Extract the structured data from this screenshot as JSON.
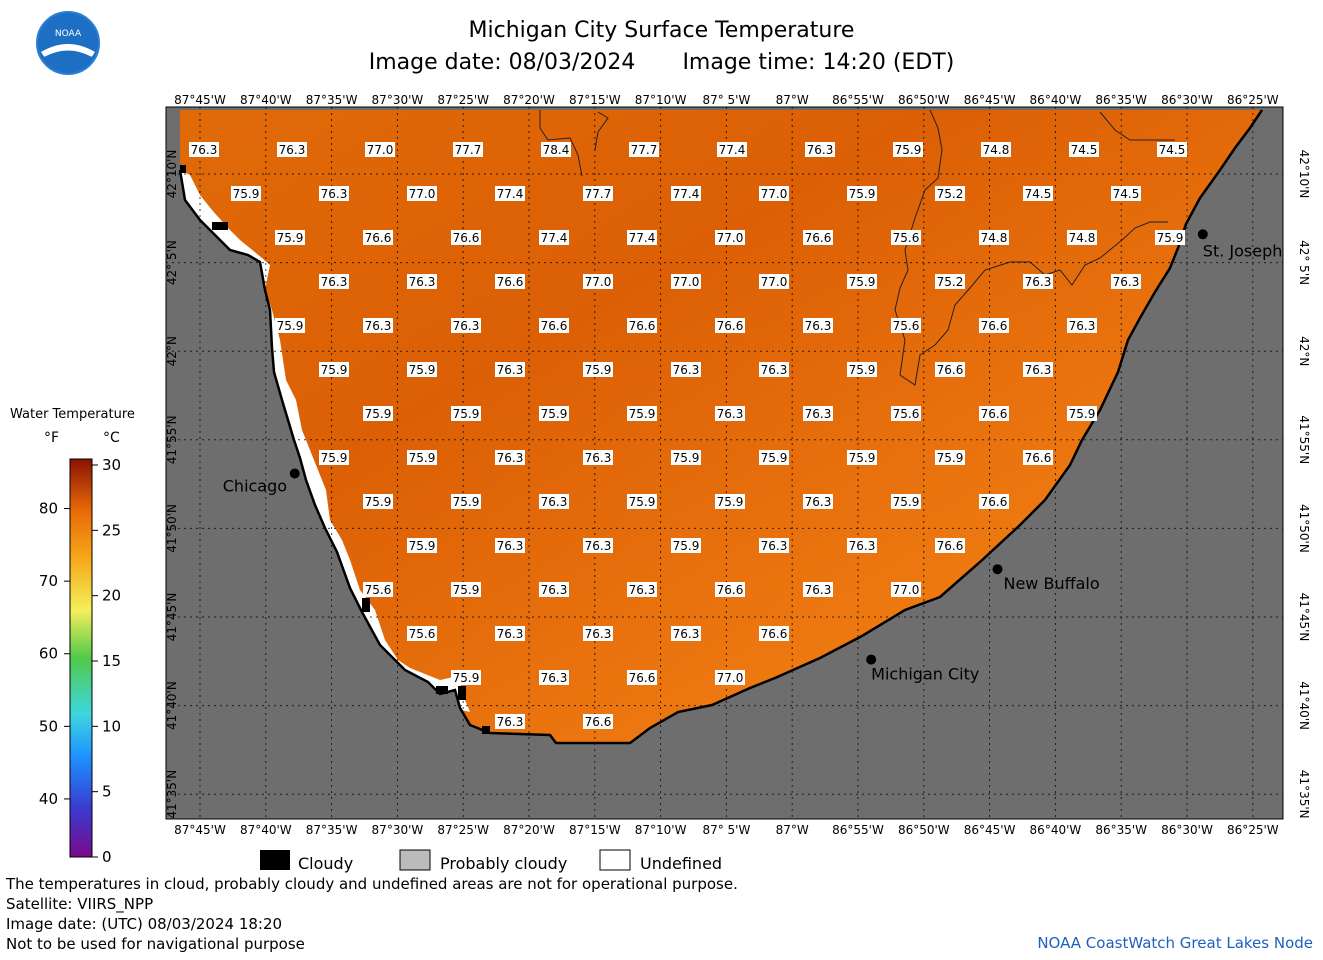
{
  "title": "Michigan City Surface Temperature",
  "image_date": "Image date: 08/03/2024",
  "image_time": "Image time: 14:20 (EDT)",
  "logo_text": "NOAA",
  "lon_labels": [
    "87°45'W",
    "87°40'W",
    "87°35'W",
    "87°30'W",
    "87°25'W",
    "87°20'W",
    "87°15'W",
    "87°10'W",
    "87° 5'W",
    "87°W",
    "86°55'W",
    "86°50'W",
    "86°45'W",
    "86°40'W",
    "86°35'W",
    "86°30'W",
    "86°25'W"
  ],
  "lat_labels": [
    "42°10'N",
    "42° 5'N",
    "42°N",
    "41°55'N",
    "41°50'N",
    "41°45'N",
    "41°40'N",
    "41°35'N"
  ],
  "colorbar": {
    "title": "Water Temperature",
    "unit_f": "°F",
    "unit_c": "°C",
    "f_ticks": [
      "80",
      "70",
      "60",
      "50",
      "40"
    ],
    "c_ticks": [
      "30",
      "25",
      "20",
      "15",
      "10",
      "5",
      "0"
    ]
  },
  "cities": [
    {
      "name": "Chicago",
      "lon": -87.63,
      "lat": 41.885
    },
    {
      "name": "Michigan City",
      "lon": -86.9,
      "lat": 41.71
    },
    {
      "name": "New Buffalo",
      "lon": -86.74,
      "lat": 41.795
    },
    {
      "name": "St. Joseph",
      "lon": -86.48,
      "lat": 42.11
    }
  ],
  "temperature_grid": [
    [
      "76.3",
      "76.3",
      "77.0",
      "77.7",
      "78.4",
      "77.7",
      "77.4",
      "76.3",
      "75.9",
      "74.8",
      "74.5",
      "74.5"
    ],
    [
      "75.9",
      "76.3",
      "77.0",
      "77.4",
      "77.7",
      "77.4",
      "77.0",
      "75.9",
      "75.2",
      "74.5",
      "74.5"
    ],
    [
      "75.9",
      "76.6",
      "76.6",
      "77.4",
      "77.4",
      "77.0",
      "76.6",
      "75.6",
      "74.8",
      "74.8",
      "75.9"
    ],
    [
      "76.3",
      "76.3",
      "76.6",
      "77.0",
      "77.0",
      "77.0",
      "75.9",
      "75.2",
      "76.3",
      "76.3"
    ],
    [
      "75.9",
      "76.3",
      "76.3",
      "76.6",
      "76.6",
      "76.6",
      "76.3",
      "75.6",
      "76.6",
      "76.3"
    ],
    [
      "75.9",
      "75.9",
      "76.3",
      "75.9",
      "76.3",
      "76.3",
      "75.9",
      "76.6",
      "76.3"
    ],
    [
      "75.9",
      "75.9",
      "75.9",
      "75.9",
      "76.3",
      "76.3",
      "75.6",
      "76.6",
      "75.9"
    ],
    [
      "75.9",
      "75.9",
      "76.3",
      "76.3",
      "75.9",
      "75.9",
      "75.9",
      "75.9",
      "76.6"
    ],
    [
      "75.9",
      "75.9",
      "76.3",
      "75.9",
      "75.9",
      "76.3",
      "75.9",
      "76.6"
    ],
    [
      "75.9",
      "76.3",
      "76.3",
      "75.9",
      "76.3",
      "76.3",
      "76.6"
    ],
    [
      "75.6",
      "75.9",
      "76.3",
      "76.3",
      "76.6",
      "76.3",
      "77.0"
    ],
    [
      "75.6",
      "76.3",
      "76.3",
      "76.3",
      "76.6"
    ],
    [
      "75.9",
      "76.3",
      "76.6",
      "77.0"
    ],
    [
      "76.3",
      "76.6"
    ]
  ],
  "legend": {
    "cloudy": "Cloudy",
    "probably_cloudy": "Probably cloudy",
    "undefined": "Undefined"
  },
  "footnotes": [
    "The temperatures in cloud, probably cloudy and undefined areas are not for operational purpose.",
    "Satellite: VIIRS_NPP",
    "Image date: (UTC) 08/03/2024   18:20",
    "Not to be used for navigational purpose"
  ],
  "credit": "NOAA CoastWatch Great Lakes Node",
  "colors": {
    "water": "#f07f10",
    "water_dark": "#dc5f05",
    "land": "#6e6e6e",
    "grid": "#000000"
  }
}
